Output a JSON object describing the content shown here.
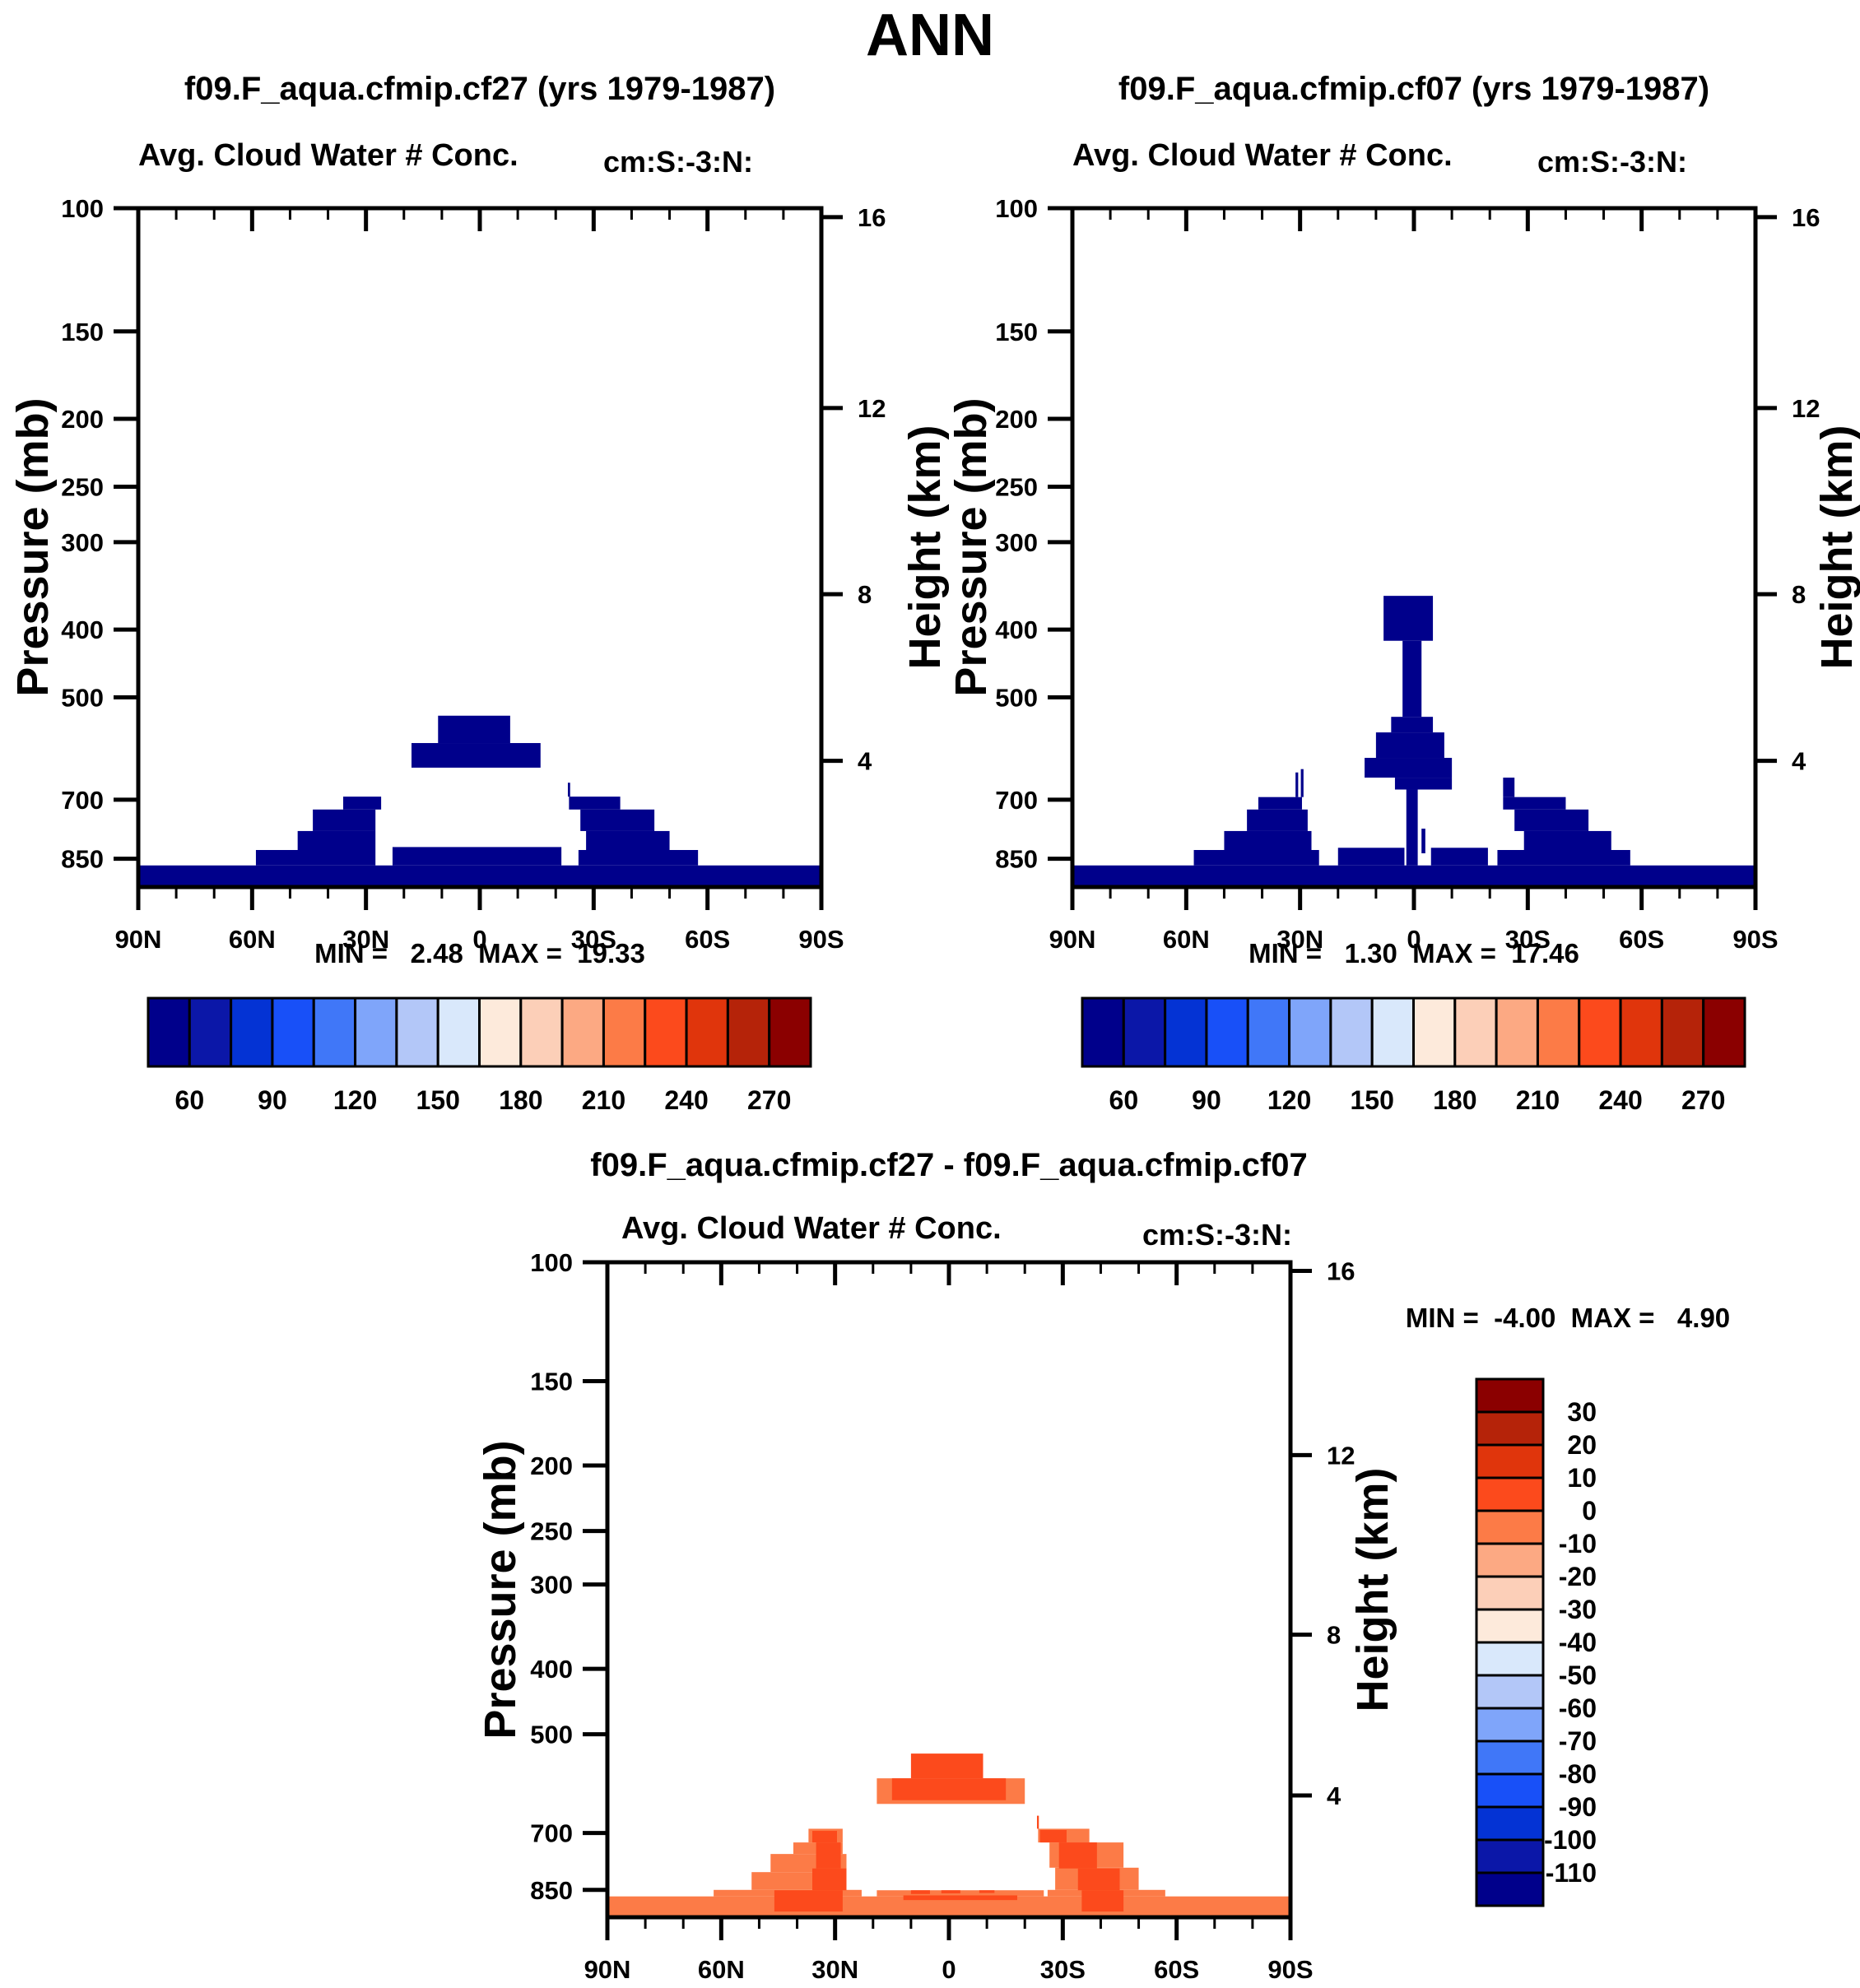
{
  "chart_data": {
    "type": "heatmap",
    "title": "ANN",
    "xlabel_ticks": [
      "90N",
      "60N",
      "30N",
      "0",
      "30S",
      "60S",
      "90S"
    ],
    "lat_major": [
      90,
      60,
      30,
      0,
      -30,
      -60,
      -90
    ],
    "lat_minor_step": 10,
    "ylabel_left": "Pressure (mb)",
    "ylabel_right": "Height (km)",
    "pressure_ticks": [
      100,
      150,
      200,
      250,
      300,
      400,
      500,
      700,
      850
    ],
    "pressure_range": [
      100,
      933
    ],
    "height_ticks": [
      {
        "km": "16",
        "p": 103
      },
      {
        "km": "12",
        "p": 193
      },
      {
        "km": "8",
        "p": 356
      },
      {
        "km": "4",
        "p": 616
      }
    ],
    "palette_blue_to_red": [
      "#00008B",
      "#0B17A8",
      "#0433D4",
      "#1850F8",
      "#4077F8",
      "#7FA5FA",
      "#B3C7F8",
      "#D9E8FB",
      "#FDEADB",
      "#FCCFB8",
      "#FCA983",
      "#FC7B47",
      "#FC4A1C",
      "#E0350C",
      "#B52309",
      "#8B0000"
    ],
    "levels_label_horizontal": [
      "60",
      "90",
      "120",
      "150",
      "180",
      "210",
      "240",
      "270"
    ],
    "levels_label_vertical": [
      "30",
      "20",
      "10",
      "0",
      "-10",
      "-20",
      "-30",
      "-40",
      "-50",
      "-60",
      "-70",
      "-80",
      "-90",
      "-100",
      "-110"
    ],
    "field_fill_color": "#00008B",
    "diff_fill_positive": "#FC4A1C",
    "diff_fill_negative": "#FC7B47",
    "region_format": "[lat_from_degN, lat_to_degN, pressure_top_mb, pressure_bottom_mb]",
    "panels": [
      {
        "id": "cf27",
        "title": "f09.F_aqua.cfmip.cf27 (yrs 1979-1987)",
        "subtitle_left": "Avg. Cloud Water # Conc.",
        "subtitle_right": "cm:S:-3:N:",
        "minmax": "MIN =   2.48  MAX =  19.33",
        "regions": [
          [
            90,
            -90,
            869,
            933
          ],
          [
            23,
            -21.5,
            818,
            869
          ],
          [
            18,
            -16,
            581,
            630
          ],
          [
            11,
            -8,
            531,
            581
          ],
          [
            59,
            27.5,
            826,
            869
          ],
          [
            48,
            27.5,
            776,
            826
          ],
          [
            44,
            27.5,
            723,
            776
          ],
          [
            36,
            26,
            693,
            723
          ],
          [
            -23.2,
            -23.8,
            662,
            693
          ],
          [
            -23.5,
            -37,
            693,
            723
          ],
          [
            -26.5,
            -46,
            723,
            776
          ],
          [
            -28,
            -50,
            776,
            826
          ],
          [
            -26,
            -57.5,
            826,
            869
          ]
        ]
      },
      {
        "id": "cf07",
        "title": "f09.F_aqua.cfmip.cf07 (yrs 1979-1987)",
        "subtitle_left": "Avg. Cloud Water # Conc.",
        "subtitle_right": "cm:S:-3:N:",
        "minmax": "MIN =   1.30  MAX =  17.46",
        "regions": [
          [
            90,
            -90,
            869,
            933
          ],
          [
            20,
            2.5,
            820,
            869
          ],
          [
            -4.5,
            -19.5,
            820,
            869
          ],
          [
            8,
            -5,
            358,
            415
          ],
          [
            3,
            -2,
            415,
            533
          ],
          [
            6,
            -5,
            533,
            561
          ],
          [
            10,
            -8,
            561,
            610
          ],
          [
            13,
            -10,
            610,
            651
          ],
          [
            5,
            -10,
            651,
            677
          ],
          [
            2,
            -1,
            677,
            869
          ],
          [
            -2,
            -3,
            770,
            835
          ],
          [
            41,
            29.5,
            694,
            723
          ],
          [
            44,
            28,
            723,
            776
          ],
          [
            50,
            27,
            776,
            826
          ],
          [
            58,
            25,
            826,
            869
          ],
          [
            31.2,
            30.5,
            640,
            694
          ],
          [
            29.8,
            29.1,
            633,
            694
          ],
          [
            -23.5,
            -26.5,
            651,
            694
          ],
          [
            -23.5,
            -40,
            694,
            723
          ],
          [
            -26.5,
            -46,
            723,
            776
          ],
          [
            -29,
            -52,
            776,
            826
          ],
          [
            -22,
            -57,
            826,
            869
          ]
        ]
      },
      {
        "id": "diff",
        "title": "f09.F_aqua.cfmip.cf27 - f09.F_aqua.cfmip.cf07",
        "subtitle_left": "Avg. Cloud Water # Conc.",
        "subtitle_right": "cm:S:-3:N:",
        "minmax": "MIN =  -4.00  MAX =   4.90",
        "regions_negative": [
          [
            90,
            -90,
            869,
            933
          ],
          [
            19,
            -25,
            851,
            869
          ],
          [
            62,
            23,
            850,
            869
          ],
          [
            52,
            27,
            800,
            850
          ],
          [
            47,
            27,
            752,
            800
          ],
          [
            41,
            28,
            723,
            752
          ],
          [
            37,
            28,
            690,
            723
          ],
          [
            -26,
            -57,
            850,
            869
          ],
          [
            -28,
            -50,
            788,
            850
          ],
          [
            -26.5,
            -46,
            723,
            788
          ],
          [
            -23.5,
            -37,
            690,
            723
          ],
          [
            19,
            -20,
            581,
            634
          ]
        ],
        "regions_positive": [
          [
            10,
            -9,
            534,
            581
          ],
          [
            15,
            -15,
            581,
            626
          ],
          [
            36,
            29.5,
            695,
            723
          ],
          [
            35,
            28.5,
            723,
            790
          ],
          [
            36,
            27,
            790,
            851
          ],
          [
            46,
            28,
            851,
            915
          ],
          [
            -23.2,
            -23.7,
            660,
            690
          ],
          [
            -24,
            -31,
            693,
            723
          ],
          [
            -29,
            -39,
            723,
            790
          ],
          [
            -34,
            -45,
            790,
            851
          ],
          [
            -35,
            -46,
            851,
            915
          ],
          [
            10,
            5,
            851,
            862
          ],
          [
            2,
            -3,
            851,
            860
          ],
          [
            -8,
            -12,
            851,
            859
          ],
          [
            12,
            -18,
            866,
            880
          ]
        ]
      }
    ]
  }
}
